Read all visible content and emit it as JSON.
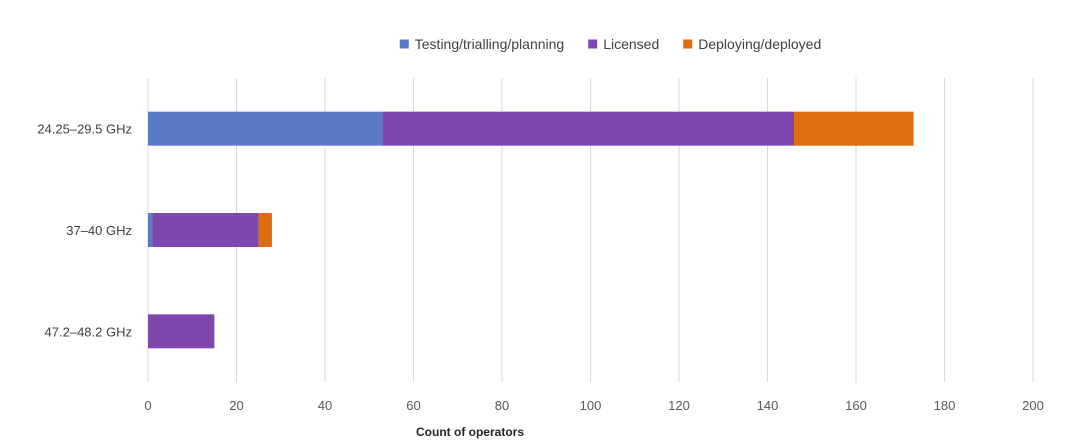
{
  "chart_data": {
    "type": "bar",
    "orientation": "horizontal",
    "stacked": true,
    "title": "",
    "categories": [
      "24.25–29.5 GHz",
      "37–40 GHz",
      "47.2–48.2 GHz"
    ],
    "series": [
      {
        "name": "Testing/trialling/planning",
        "color": "#5b7bc7",
        "values": [
          53,
          1,
          0
        ]
      },
      {
        "name": "Licensed",
        "color": "#7f47ae",
        "values": [
          93,
          24,
          15
        ]
      },
      {
        "name": "Deploying/deployed",
        "color": "#e06c10",
        "values": [
          27,
          3,
          0
        ]
      }
    ],
    "xlabel": "Count of operators",
    "ylabel": "",
    "xlim": [
      0,
      200
    ],
    "xticks": [
      "0",
      "20",
      "40",
      "60",
      "80",
      "100",
      "120",
      "140",
      "160",
      "180",
      "200"
    ],
    "grid": true,
    "legend_position": "top-center"
  }
}
